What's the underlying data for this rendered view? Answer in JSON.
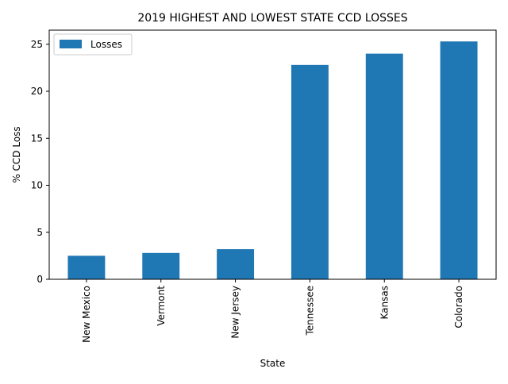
{
  "chart_data": {
    "type": "bar",
    "title": "2019 HIGHEST AND LOWEST STATE CCD LOSSES",
    "xlabel": "State",
    "ylabel": "% CCD Loss",
    "categories": [
      "New Mexico",
      "Vermont",
      "New Jersey",
      "Tennessee",
      "Kansas",
      "Colorado"
    ],
    "series": [
      {
        "name": "Losses",
        "values": [
          2.5,
          2.8,
          3.2,
          22.8,
          24.0,
          25.3
        ],
        "color": "#1f77b4"
      }
    ],
    "ylim": [
      0,
      26.5
    ],
    "yticks": [
      0,
      5,
      10,
      15,
      20,
      25
    ],
    "grid": false,
    "legend_position": "top-left"
  }
}
